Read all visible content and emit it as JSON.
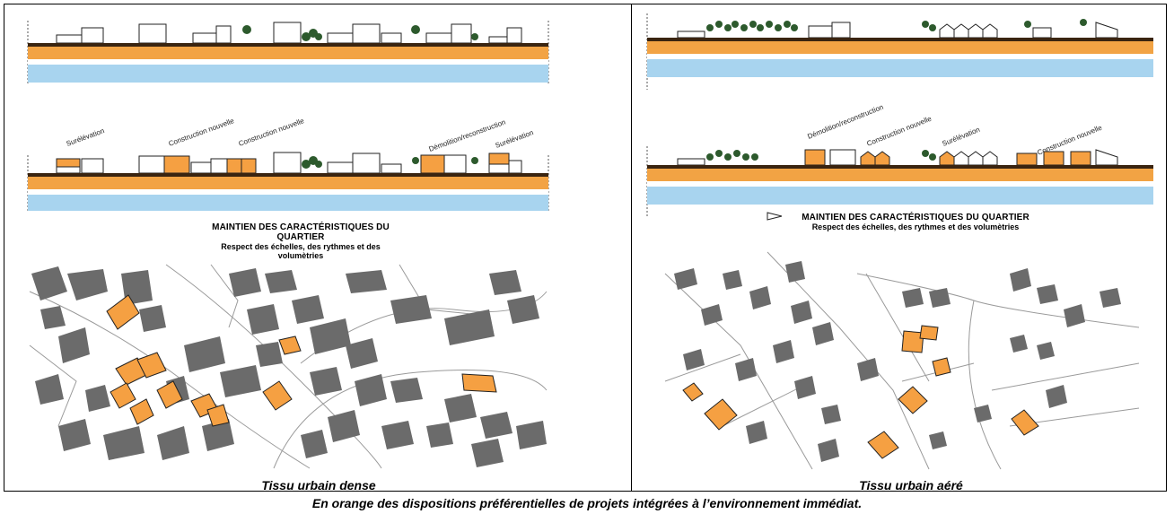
{
  "colors": {
    "orange": "#f5a042",
    "road": "#f2a344",
    "water": "#a8d4ef",
    "ground": "#3a2410",
    "building": "#6b6b6b",
    "parcel_line": "#9a9a9a"
  },
  "left": {
    "tags": [
      "Surélévation",
      "Construction nouvelle",
      "Construction nouvelle",
      "Démolition/reconstruction",
      "Surélévation"
    ],
    "note_title": "MAINTIEN DES CARACTÉRISTIQUES DU QUARTIER",
    "note_sub": "Respect des échelles, des rythmes et des volumètries",
    "footer": "Tissu urbain dense"
  },
  "right": {
    "tags": [
      "Démolition/reconstruction",
      "Construction nouvelle",
      "Surélévation",
      "Construction nouvelle"
    ],
    "note_title": "MAINTIEN DES CARACTÉRISTIQUES DU QUARTIER",
    "note_sub": "Respect des échelles, des rythmes et des volumètries",
    "footer": "Tissu urbain aéré"
  },
  "caption": "En orange des dispositions préférentielles de projets intégrées à l’environnement immédiat."
}
